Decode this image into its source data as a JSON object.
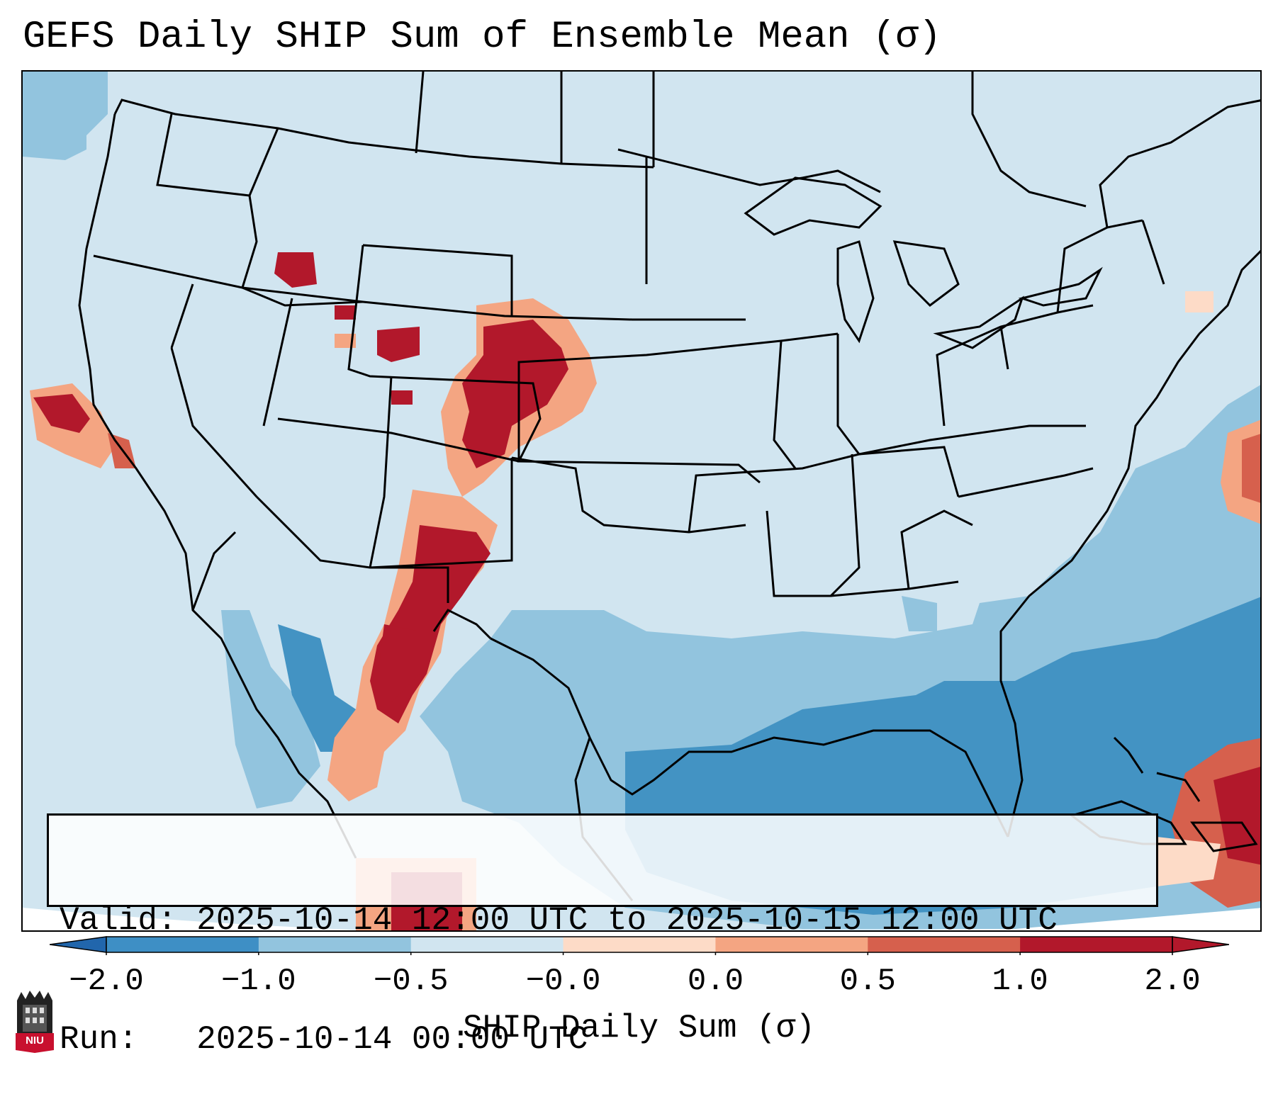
{
  "title": "GEFS Daily SHIP Sum of Ensemble Mean (σ)",
  "info": {
    "valid_label": "Valid:",
    "valid_value": "2025-10-14 12:00 UTC to 2025-10-15 12:00 UTC",
    "run_label": "Run:",
    "run_value": "2025-10-14 00:00 UTC"
  },
  "colorbar": {
    "label": "SHIP Daily Sum (σ)",
    "ticks": [
      "−2.0",
      "−1.0",
      "−0.5",
      "−0.0",
      "0.0",
      "0.5",
      "1.0",
      "2.0"
    ],
    "colors": [
      "#3e8fc5",
      "#92c4de",
      "#d1e5f0",
      "#fddbc7",
      "#f4a582",
      "#d6604d",
      "#b2182b"
    ],
    "extend_low_color": "#2166ac",
    "extend_high_color": "#b2182b"
  },
  "logo": {
    "text": "NIU",
    "icon": "niu-logo-icon"
  },
  "map": {
    "background_color": "#d1e5f0",
    "region": "Contiguous United States",
    "features": [
      "state-borders",
      "coastlines",
      "country-borders"
    ]
  }
}
